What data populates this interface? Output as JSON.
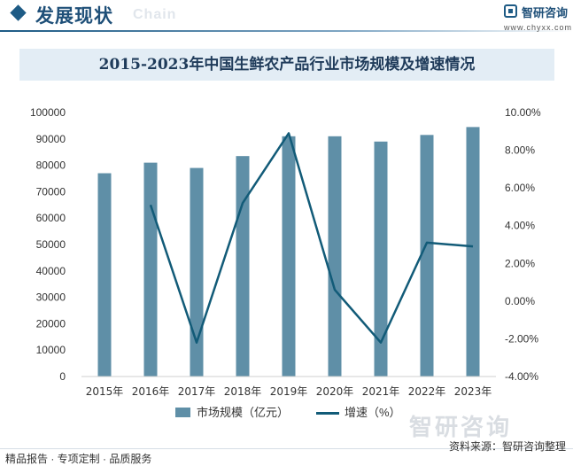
{
  "header": {
    "section_title": "发展现状",
    "ghost_text": "Chain",
    "logo_name": "智研咨询",
    "logo_url": "www.chyxx.com"
  },
  "chart_data": {
    "type": "bar",
    "title": "2015-2023年中国生鲜农产品行业市场规模及增速情况",
    "categories": [
      "2015年",
      "2016年",
      "2017年",
      "2018年",
      "2019年",
      "2020年",
      "2021年",
      "2022年",
      "2023年"
    ],
    "series": [
      {
        "name": "市场规模（亿元）",
        "type": "bar",
        "axis": "left",
        "values": [
          77000,
          81000,
          79000,
          83500,
          91000,
          91000,
          89000,
          91500,
          94500
        ],
        "color": "#5f8fa7"
      },
      {
        "name": "增速（%）",
        "type": "line",
        "axis": "right",
        "values": [
          null,
          5.1,
          -2.2,
          5.2,
          8.9,
          0.6,
          -2.2,
          3.1,
          2.9
        ],
        "color": "#125b78"
      }
    ],
    "y_left": {
      "min": 0,
      "max": 100000,
      "step": 10000,
      "ticks": [
        "0",
        "10000",
        "20000",
        "30000",
        "40000",
        "50000",
        "60000",
        "70000",
        "80000",
        "90000",
        "100000"
      ]
    },
    "y_right": {
      "min": -4,
      "max": 10,
      "step": 2,
      "ticks": [
        "-4.00%",
        "-2.00%",
        "0.00%",
        "2.00%",
        "4.00%",
        "6.00%",
        "8.00%",
        "10.00%"
      ]
    },
    "grid": false,
    "legend": "bottom"
  },
  "footer": {
    "left_text": "精品报告 · 专项定制 · 品质服务",
    "source_text": "资料来源：智研咨询整理",
    "watermark_brand": "智研咨询"
  }
}
